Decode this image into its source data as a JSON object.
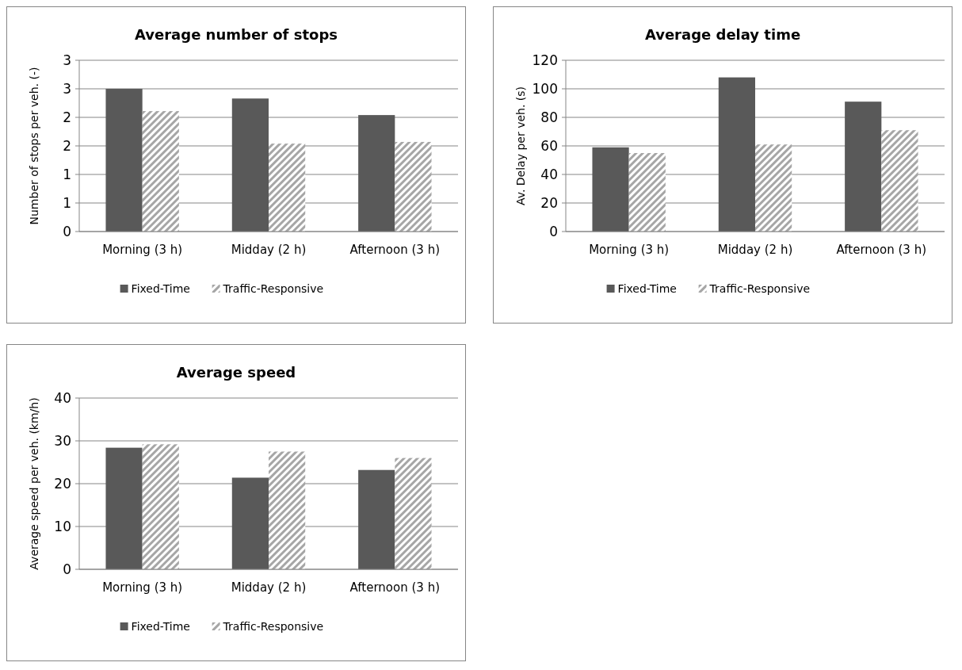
{
  "chart_data": [
    {
      "type": "bar",
      "title": "Average number of stops",
      "ylabel": "Number of stops per veh. (-)",
      "categories": [
        "Morning (3 h)",
        "Midday (2 h)",
        "Afternoon (3 h)"
      ],
      "series": [
        {
          "name": "Fixed-Time",
          "color": "#595959",
          "values": [
            2.5,
            2.33,
            2.04
          ]
        },
        {
          "name": "Traffic-Responsive",
          "color": "#a6a6a6",
          "values": [
            2.11,
            1.54,
            1.57
          ]
        }
      ],
      "ylim": [
        0,
        3
      ],
      "yticks": [
        0,
        {
          "value": 0.5,
          "label": "1"
        },
        {
          "value": 1,
          "label": "1"
        },
        {
          "value": 1.5,
          "label": "2"
        },
        {
          "value": 2,
          "label": "2"
        },
        {
          "value": 2.5,
          "label": "3"
        },
        {
          "value": 3,
          "label": "3"
        }
      ],
      "grid": "y",
      "legend": "bottom"
    },
    {
      "type": "bar",
      "title": "Average delay time",
      "ylabel": "Av. Delay per veh. (s)",
      "categories": [
        "Morning (3 h)",
        "Midday (2 h)",
        "Afternoon (3 h)"
      ],
      "series": [
        {
          "name": "Fixed-Time",
          "color": "#595959",
          "values": [
            59,
            108,
            91
          ]
        },
        {
          "name": "Traffic-Responsive",
          "color": "#a6a6a6",
          "values": [
            55,
            61,
            71
          ]
        }
      ],
      "ylim": [
        0,
        120
      ],
      "yticks": [
        0,
        20,
        40,
        60,
        80,
        100,
        120
      ],
      "grid": "y",
      "legend": "bottom"
    },
    {
      "type": "bar",
      "title": "Average speed",
      "ylabel": "Average speed per veh. (km/h)",
      "categories": [
        "Morning (3 h)",
        "Midday (2 h)",
        "Afternoon (3 h)"
      ],
      "series": [
        {
          "name": "Fixed-Time",
          "color": "#595959",
          "values": [
            28.4,
            21.4,
            23.2
          ]
        },
        {
          "name": "Traffic-Responsive",
          "color": "#a6a6a6",
          "values": [
            29.2,
            27.5,
            26
          ]
        }
      ],
      "ylim": [
        0,
        40
      ],
      "yticks": [
        0,
        10,
        20,
        30,
        40
      ],
      "grid": "y",
      "legend": "bottom"
    }
  ]
}
